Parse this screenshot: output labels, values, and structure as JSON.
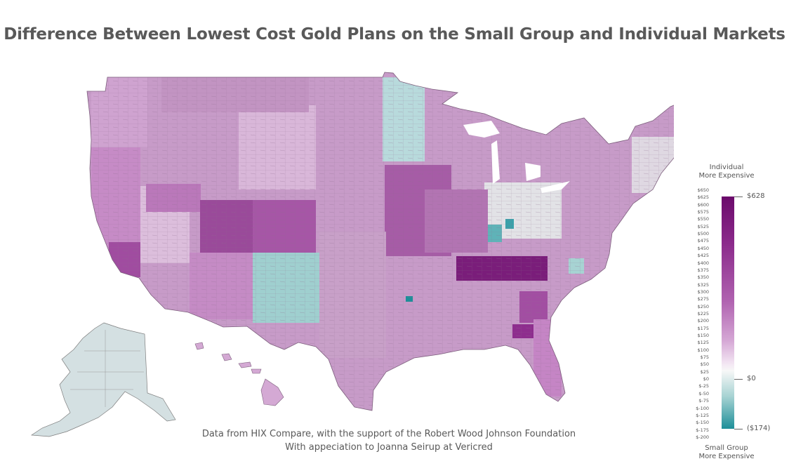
{
  "title": "Difference Between Lowest Cost Gold Plans on the Small Group and Individual Markets",
  "credits": {
    "line1": "Data from HIX Compare, with the support of the Robert Wood Johnson Foundation",
    "line2": "With appeciation to Joanna Seirup at Vericred"
  },
  "legend": {
    "top_label": [
      "Individual",
      "More Expensive"
    ],
    "bottom_label": [
      "Small Group",
      "More Expensive"
    ],
    "ticks": [
      "$650",
      "$625",
      "$600",
      "$575",
      "$550",
      "$525",
      "$500",
      "$475",
      "$450",
      "$425",
      "$400",
      "$375",
      "$350",
      "$325",
      "$300",
      "$275",
      "$250",
      "$225",
      "$200",
      "$175",
      "$150",
      "$125",
      "$100",
      "$75",
      "$50",
      "$25",
      "$0",
      "$-25",
      "$-50",
      "$-75",
      "$-100",
      "$-125",
      "$-150",
      "$-175",
      "$-200"
    ],
    "max_label": "$628",
    "zero_label": "$0",
    "min_label": "($174)",
    "max_value": 628,
    "min_value": -174,
    "colors": {
      "high": "#6b0a6b",
      "mid_high": "#b062b0",
      "neutral": "#f7f7f7",
      "low": "#1d8f99"
    }
  },
  "regions": [
    {
      "name": "West Coast",
      "color": "#c68bc6"
    },
    {
      "name": "Southern California",
      "color": "#a04ca0"
    },
    {
      "name": "Nevada",
      "color": "#dcbedc"
    },
    {
      "name": "Utah",
      "color": "#9a4a9a"
    },
    {
      "name": "Colorado",
      "color": "#9e509e"
    },
    {
      "name": "New Mexico",
      "color": "#9fcfcf"
    },
    {
      "name": "Minnesota",
      "color": "#b8dadc"
    },
    {
      "name": "Tennessee",
      "color": "#7a1d7a"
    },
    {
      "name": "South Carolina",
      "color": "#a24ea2"
    },
    {
      "name": "Georgia",
      "color": "#8e2d8e"
    },
    {
      "name": "Alaska",
      "color": "#d4e0e2"
    },
    {
      "name": "Hawaii",
      "color": "#d4a9d4"
    }
  ]
}
